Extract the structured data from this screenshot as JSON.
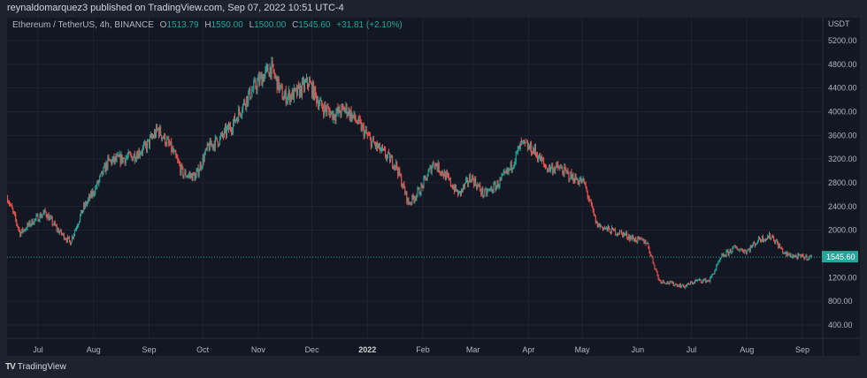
{
  "header": {
    "published": "reynaldomarquez3 published on TradingView.com, Sep 07, 2022 10:51 UTC-4"
  },
  "legend": {
    "symbol": "Ethereum / TetherUS, 4h, BINANCE",
    "o_label": "O",
    "o": "1513.79",
    "h_label": "H",
    "h": "1550.00",
    "l_label": "L",
    "l": "1500.00",
    "c_label": "C",
    "c": "1545.60",
    "change": "+31.81 (+2.10%)"
  },
  "brand": {
    "logo_icon": "tradingview-logo-icon",
    "name": "TradingView"
  },
  "colors": {
    "up": "#26a69a",
    "down": "#ef5350",
    "background": "#131722",
    "grid": "#1f2330"
  },
  "chart_data": {
    "type": "candlestick",
    "title": "Ethereum / TetherUS, 4h, BINANCE",
    "currency": "USDT",
    "ylim": [
      200,
      5400
    ],
    "y_ticks": [
      "5200.00",
      "4800.00",
      "4400.00",
      "4000.00",
      "3600.00",
      "3200.00",
      "2800.00",
      "2400.00",
      "2000.00",
      "1200.00",
      "800.00",
      "400.00"
    ],
    "x_ticks": [
      "Jul",
      "Aug",
      "Sep",
      "Oct",
      "Nov",
      "Dec",
      "2022",
      "Feb",
      "Mar",
      "Apr",
      "May",
      "Jun",
      "Jul",
      "Aug",
      "Sep"
    ],
    "last_price": "1545.60",
    "grid": true,
    "approx_weekly_closes": {
      "dates": [
        "2021-06-14",
        "2021-06-21",
        "2021-06-28",
        "2021-07-05",
        "2021-07-12",
        "2021-07-19",
        "2021-07-26",
        "2021-08-02",
        "2021-08-09",
        "2021-08-16",
        "2021-08-23",
        "2021-08-30",
        "2021-09-06",
        "2021-09-13",
        "2021-09-20",
        "2021-09-27",
        "2021-10-04",
        "2021-10-11",
        "2021-10-18",
        "2021-10-25",
        "2021-11-01",
        "2021-11-08",
        "2021-11-15",
        "2021-11-22",
        "2021-11-29",
        "2021-12-06",
        "2021-12-13",
        "2021-12-20",
        "2021-12-27",
        "2022-01-03",
        "2022-01-10",
        "2022-01-17",
        "2022-01-24",
        "2022-01-31",
        "2022-02-07",
        "2022-02-14",
        "2022-02-21",
        "2022-02-28",
        "2022-03-07",
        "2022-03-14",
        "2022-03-21",
        "2022-03-28",
        "2022-04-04",
        "2022-04-11",
        "2022-04-18",
        "2022-04-25",
        "2022-05-02",
        "2022-05-09",
        "2022-05-16",
        "2022-05-23",
        "2022-05-30",
        "2022-06-06",
        "2022-06-13",
        "2022-06-20",
        "2022-06-27",
        "2022-07-04",
        "2022-07-11",
        "2022-07-18",
        "2022-07-25",
        "2022-08-01",
        "2022-08-08",
        "2022-08-15",
        "2022-08-22",
        "2022-08-29",
        "2022-09-06"
      ],
      "values": [
        2550,
        1950,
        2150,
        2300,
        2000,
        1800,
        2350,
        2700,
        3150,
        3200,
        3250,
        3400,
        3700,
        3400,
        2950,
        2900,
        3400,
        3550,
        3800,
        4200,
        4500,
        4750,
        4250,
        4300,
        4500,
        4100,
        3950,
        4050,
        3800,
        3500,
        3300,
        3100,
        2450,
        2700,
        3150,
        2900,
        2600,
        2900,
        2600,
        2750,
        3000,
        3450,
        3350,
        3050,
        3050,
        2900,
        2800,
        2100,
        2000,
        1950,
        1850,
        1800,
        1150,
        1100,
        1050,
        1150,
        1150,
        1550,
        1700,
        1650,
        1850,
        1900,
        1600,
        1550,
        1545
      ]
    }
  }
}
